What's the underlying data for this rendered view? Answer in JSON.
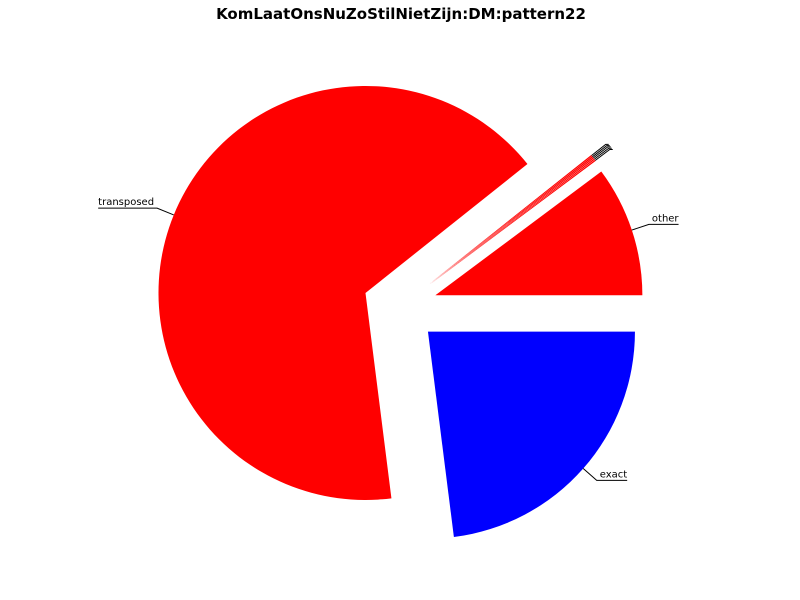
{
  "chart_data": {
    "type": "pie",
    "title": "KomLaatOnsNuZoStilNietZijn:DM:pattern22",
    "start_angle_deg": 0,
    "direction": "counterclockwise",
    "slices": [
      {
        "label": "other",
        "value": 10.2,
        "color": "#ff0000",
        "exploded": true
      },
      {
        "label": "",
        "value": 0.1,
        "color": "#ff0000",
        "exploded": true
      },
      {
        "label": "",
        "value": 0.1,
        "color": "#ff0000",
        "exploded": true
      },
      {
        "label": "",
        "value": 0.1,
        "color": "#ff0000",
        "exploded": true
      },
      {
        "label": "",
        "value": 0.1,
        "color": "#ff0000",
        "exploded": true
      },
      {
        "label": "",
        "value": 0.1,
        "color": "#ff0000",
        "exploded": true
      },
      {
        "label": "transposed",
        "value": 66.3,
        "color": "#ff0000",
        "exploded": true
      },
      {
        "label": "exact",
        "value": 23.0,
        "color": "#0000ff",
        "exploded": true
      }
    ]
  }
}
